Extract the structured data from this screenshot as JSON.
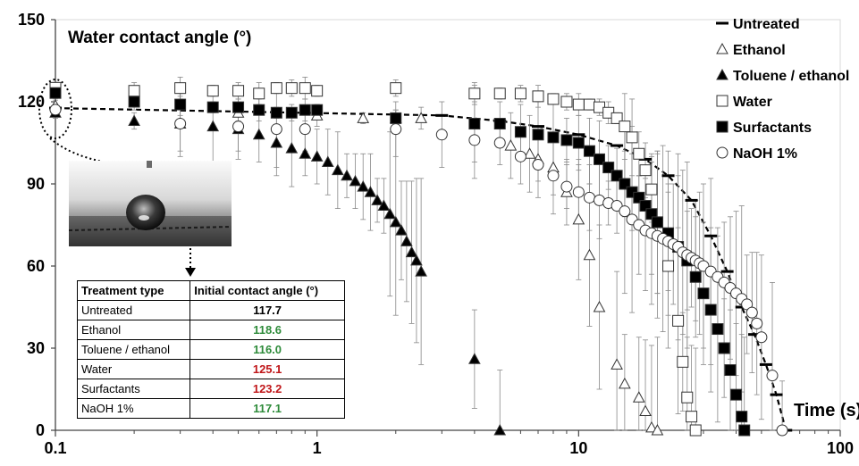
{
  "chart_data": {
    "type": "scatter",
    "title": "Water contact angle (°)",
    "xlabel": "Time (s)",
    "ylabel": "",
    "x_scale": "log",
    "xlim": [
      0.1,
      100
    ],
    "ylim": [
      0,
      150
    ],
    "x_ticks": [
      0.1,
      1,
      10,
      100
    ],
    "x_tick_labels": [
      "0.1",
      "1",
      "10",
      "100"
    ],
    "y_ticks": [
      0,
      30,
      60,
      90,
      120,
      150
    ],
    "y_tick_labels": [
      "0",
      "30",
      "60",
      "90",
      "120",
      "150"
    ],
    "legend_position": "top-right",
    "series": [
      {
        "name": "Untreated",
        "marker": "dash",
        "fit_curve": true,
        "points": [
          [
            0.1,
            117.7
          ],
          [
            3,
            115
          ],
          [
            5,
            113
          ],
          [
            7,
            111
          ],
          [
            10,
            108
          ],
          [
            14,
            104
          ],
          [
            18,
            99
          ],
          [
            22,
            93
          ],
          [
            27,
            84
          ],
          [
            32,
            71
          ],
          [
            37,
            58
          ],
          [
            42,
            45
          ],
          [
            47,
            35
          ],
          [
            52,
            24
          ],
          [
            57,
            13
          ],
          [
            62,
            0
          ]
        ]
      },
      {
        "name": "Ethanol",
        "marker": "triangle-open",
        "points": [
          [
            0.1,
            118.6
          ],
          [
            0.5,
            116
          ],
          [
            1,
            115
          ],
          [
            1.5,
            114
          ],
          [
            2,
            114
          ],
          [
            2.5,
            114
          ],
          [
            5.5,
            104
          ],
          [
            6.5,
            101
          ],
          [
            7,
            99
          ],
          [
            8,
            96
          ],
          [
            9,
            87
          ],
          [
            10,
            77
          ],
          [
            11,
            64
          ],
          [
            12,
            45
          ],
          [
            14,
            24
          ],
          [
            15,
            17
          ],
          [
            17,
            12
          ],
          [
            18,
            7
          ],
          [
            19,
            1
          ],
          [
            20,
            0
          ]
        ]
      },
      {
        "name": "Toluene / ethanol",
        "marker": "triangle-filled",
        "points": [
          [
            0.1,
            116
          ],
          [
            0.2,
            113
          ],
          [
            0.3,
            112
          ],
          [
            0.4,
            111
          ],
          [
            0.5,
            110
          ],
          [
            0.6,
            108
          ],
          [
            0.7,
            105
          ],
          [
            0.8,
            103
          ],
          [
            0.9,
            101
          ],
          [
            1,
            100
          ],
          [
            1.1,
            98
          ],
          [
            1.2,
            95
          ],
          [
            1.3,
            93
          ],
          [
            1.4,
            91
          ],
          [
            1.5,
            89
          ],
          [
            1.6,
            87
          ],
          [
            1.7,
            84
          ],
          [
            1.8,
            82
          ],
          [
            1.9,
            79
          ],
          [
            2,
            76
          ],
          [
            2.1,
            73
          ],
          [
            2.2,
            69
          ],
          [
            2.3,
            65
          ],
          [
            2.4,
            62
          ],
          [
            2.5,
            58
          ],
          [
            4,
            26
          ],
          [
            5,
            0
          ]
        ]
      },
      {
        "name": "Water",
        "marker": "square-open",
        "points": [
          [
            0.1,
            125.1
          ],
          [
            0.2,
            124
          ],
          [
            0.3,
            125
          ],
          [
            0.4,
            124
          ],
          [
            0.5,
            124
          ],
          [
            0.6,
            123
          ],
          [
            0.7,
            125
          ],
          [
            0.8,
            125
          ],
          [
            0.9,
            125
          ],
          [
            1,
            124
          ],
          [
            2,
            125
          ],
          [
            4,
            123
          ],
          [
            5,
            123
          ],
          [
            6,
            123
          ],
          [
            7,
            122
          ],
          [
            8,
            121
          ],
          [
            9,
            120
          ],
          [
            10,
            119
          ],
          [
            11,
            119
          ],
          [
            12,
            118
          ],
          [
            13,
            116
          ],
          [
            14,
            114
          ],
          [
            15,
            111
          ],
          [
            16,
            107
          ],
          [
            17,
            101
          ],
          [
            18,
            95
          ],
          [
            19,
            88
          ],
          [
            20,
            76
          ],
          [
            22,
            60
          ],
          [
            24,
            40
          ],
          [
            25,
            25
          ],
          [
            26,
            12
          ],
          [
            27,
            5
          ],
          [
            28,
            0
          ]
        ]
      },
      {
        "name": "Surfactants",
        "marker": "square-filled",
        "points": [
          [
            0.1,
            123.2
          ],
          [
            0.2,
            120
          ],
          [
            0.3,
            119
          ],
          [
            0.4,
            118
          ],
          [
            0.5,
            118
          ],
          [
            0.6,
            117
          ],
          [
            0.7,
            116
          ],
          [
            0.8,
            116
          ],
          [
            0.9,
            117
          ],
          [
            1,
            117
          ],
          [
            2,
            114
          ],
          [
            4,
            112
          ],
          [
            5,
            112
          ],
          [
            6,
            109
          ],
          [
            7,
            108
          ],
          [
            8,
            107
          ],
          [
            9,
            106
          ],
          [
            10,
            105
          ],
          [
            11,
            102
          ],
          [
            12,
            99
          ],
          [
            13,
            96
          ],
          [
            14,
            93
          ],
          [
            15,
            90
          ],
          [
            16,
            87
          ],
          [
            17,
            85
          ],
          [
            18,
            82
          ],
          [
            19,
            79
          ],
          [
            20,
            76
          ],
          [
            22,
            72
          ],
          [
            24,
            67
          ],
          [
            26,
            62
          ],
          [
            28,
            56
          ],
          [
            30,
            50
          ],
          [
            32,
            44
          ],
          [
            34,
            37
          ],
          [
            36,
            30
          ],
          [
            38,
            22
          ],
          [
            40,
            13
          ],
          [
            42,
            5
          ],
          [
            43,
            0
          ]
        ]
      },
      {
        "name": "NaOH 1%",
        "marker": "circle-open",
        "points": [
          [
            0.1,
            117.1
          ],
          [
            0.3,
            112
          ],
          [
            0.5,
            111
          ],
          [
            0.7,
            110
          ],
          [
            0.9,
            110
          ],
          [
            2,
            110
          ],
          [
            3,
            108
          ],
          [
            4,
            106
          ],
          [
            5,
            105
          ],
          [
            6,
            100
          ],
          [
            7,
            97
          ],
          [
            8,
            93
          ],
          [
            9,
            89
          ],
          [
            10,
            87
          ],
          [
            11,
            85
          ],
          [
            12,
            84
          ],
          [
            13,
            83
          ],
          [
            14,
            82
          ],
          [
            15,
            80
          ],
          [
            16,
            77
          ],
          [
            17,
            75
          ],
          [
            18,
            73
          ],
          [
            19,
            72
          ],
          [
            20,
            71
          ],
          [
            21,
            70
          ],
          [
            22,
            69
          ],
          [
            23,
            68
          ],
          [
            24,
            67
          ],
          [
            25,
            65
          ],
          [
            26,
            64
          ],
          [
            27,
            63
          ],
          [
            28,
            62
          ],
          [
            29,
            61
          ],
          [
            30,
            60
          ],
          [
            32,
            58
          ],
          [
            34,
            56
          ],
          [
            36,
            54
          ],
          [
            38,
            52
          ],
          [
            40,
            50
          ],
          [
            42,
            48
          ],
          [
            44,
            46
          ],
          [
            46,
            43
          ],
          [
            48,
            39
          ],
          [
            50,
            34
          ],
          [
            55,
            20
          ],
          [
            60,
            0
          ]
        ]
      }
    ],
    "annotations": [
      "Dotted ellipse marks initial points at 0.1 s; dotted arrow points from ellipse to inset photo and table"
    ]
  },
  "inset_table": {
    "headers": [
      "Treatment type",
      "Initial contact angle (°)"
    ],
    "rows": [
      {
        "name": "Untreated",
        "value": "117.7",
        "color": "#000000"
      },
      {
        "name": "Ethanol",
        "value": "118.6",
        "color": "#2e8b3a"
      },
      {
        "name": "Toluene / ethanol",
        "value": "116.0",
        "color": "#2e8b3a"
      },
      {
        "name": "Water",
        "value": "125.1",
        "color": "#c0171a"
      },
      {
        "name": "Surfactants",
        "value": "123.2",
        "color": "#c0171a"
      },
      {
        "name": "NaOH 1%",
        "value": "117.1",
        "color": "#2e8b3a"
      }
    ]
  },
  "inset_photo": {
    "description_icon": "water-droplet-photo"
  }
}
